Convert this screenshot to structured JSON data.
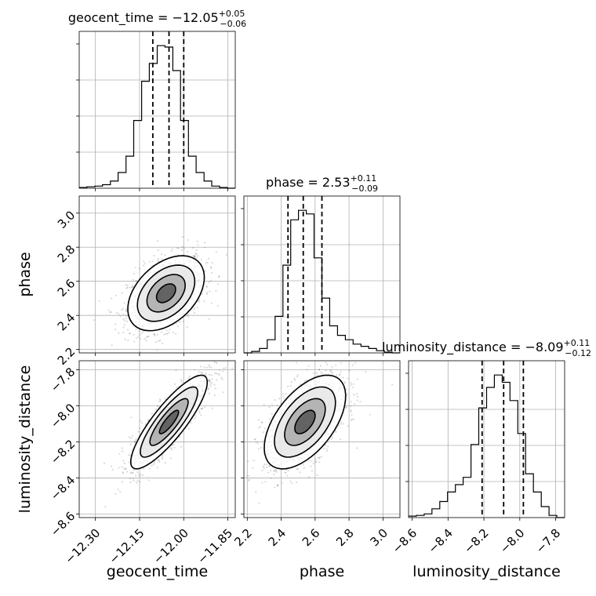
{
  "chart_data": {
    "type": "corner",
    "parameters": [
      {
        "name": "geocent_time",
        "xlabel": "geocent_time",
        "ylabel": "",
        "median": -12.05,
        "err_plus": 0.05,
        "err_minus": 0.06,
        "title_main": "geocent_time = −12.05",
        "title_sup": "+0.05",
        "title_sub": "−0.06",
        "range": [
          -12.355,
          -11.825
        ],
        "ticks": [
          -12.3,
          -12.15,
          -12.0,
          -11.85
        ],
        "tick_labels": [
          "−12.30",
          "−12.15",
          "−12.00",
          "−11.85"
        ],
        "quantiles": [
          -12.105,
          -12.05,
          -12.0
        ],
        "bins": [
          -12.355,
          -12.329,
          -12.302,
          -12.276,
          -12.249,
          -12.223,
          -12.196,
          -12.17,
          -12.143,
          -12.117,
          -12.09,
          -12.064,
          -12.037,
          -12.011,
          -11.984,
          -11.958,
          -11.931,
          -11.905,
          -11.878,
          -11.852,
          -11.825
        ],
        "counts": [
          1,
          2,
          3,
          5,
          10,
          22,
          45,
          95,
          150,
          175,
          200,
          198,
          165,
          95,
          45,
          22,
          10,
          3,
          1,
          0
        ]
      },
      {
        "name": "phase",
        "xlabel": "phase",
        "ylabel": "phase",
        "median": 2.53,
        "err_plus": 0.11,
        "err_minus": 0.09,
        "title_main": "phase = 2.53",
        "title_sup": "+0.11",
        "title_sub": "−0.09",
        "range": [
          2.18,
          3.1
        ],
        "ticks": [
          2.2,
          2.4,
          2.6,
          2.8,
          3.0
        ],
        "tick_labels": [
          "2.2",
          "2.4",
          "2.6",
          "2.8",
          "3.0"
        ],
        "quantiles": [
          2.44,
          2.53,
          2.64
        ],
        "bins": [
          2.18,
          2.226,
          2.272,
          2.318,
          2.364,
          2.41,
          2.456,
          2.502,
          2.548,
          2.594,
          2.64,
          2.686,
          2.732,
          2.778,
          2.824,
          2.87,
          2.916,
          2.962,
          3.008,
          3.054,
          3.1
        ],
        "counts": [
          0,
          2,
          6,
          18,
          50,
          120,
          182,
          195,
          190,
          130,
          75,
          37,
          24,
          18,
          12,
          9,
          6,
          3,
          1,
          0
        ]
      },
      {
        "name": "luminosity_distance",
        "xlabel": "luminosity_distance",
        "ylabel": "luminosity_distance",
        "median": -8.09,
        "err_plus": 0.11,
        "err_minus": 0.12,
        "title_main": "luminosity_distance = −8.09",
        "title_sup": "+0.11",
        "title_sub": "−0.12",
        "range": [
          -8.62,
          -7.75
        ],
        "ticks": [
          -8.6,
          -8.4,
          -8.2,
          -8.0,
          -7.8
        ],
        "tick_labels": [
          "−8.6",
          "−8.4",
          "−8.2",
          "−8.0",
          "−7.8"
        ],
        "quantiles": [
          -8.21,
          -8.09,
          -7.98
        ],
        "bins": [
          -8.62,
          -8.5765,
          -8.533,
          -8.4895,
          -8.446,
          -8.4025,
          -8.359,
          -8.3155,
          -8.272,
          -8.2285,
          -8.185,
          -8.1415,
          -8.098,
          -8.0545,
          -8.011,
          -7.9675,
          -7.924,
          -7.8805,
          -7.837,
          -7.7935,
          -7.75
        ],
        "counts": [
          2,
          3,
          5,
          12,
          22,
          35,
          45,
          55,
          100,
          150,
          178,
          195,
          185,
          160,
          115,
          60,
          35,
          15,
          3,
          0
        ]
      }
    ],
    "pairs": [
      {
        "x_param": "geocent_time",
        "y_param": "phase",
        "center": [
          -12.06,
          2.53
        ],
        "sigma": [
          0.065,
          0.11
        ],
        "rho": 0.42
      },
      {
        "x_param": "geocent_time",
        "y_param": "luminosity_distance",
        "center": [
          -12.05,
          -8.09
        ],
        "sigma": [
          0.065,
          0.13
        ],
        "rho": 0.85
      },
      {
        "x_param": "phase",
        "y_param": "luminosity_distance",
        "center": [
          2.54,
          -8.09
        ],
        "sigma": [
          0.12,
          0.13
        ],
        "rho": 0.55
      }
    ],
    "grid": true,
    "contour_levels_sigma": [
      0.5,
      1,
      1.5,
      2
    ]
  }
}
